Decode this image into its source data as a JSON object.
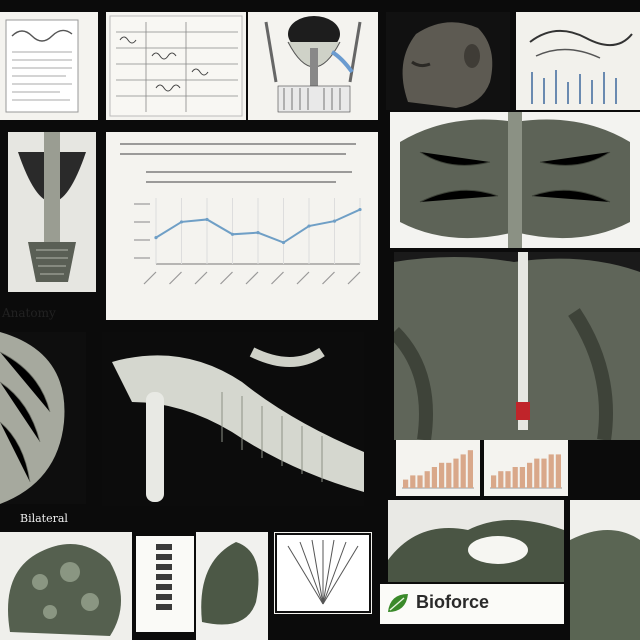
{
  "labels": {
    "left_caption": "Anatomy",
    "bottom_caption": "Bilateral",
    "brand_caption": "Bioforce"
  },
  "colors": {
    "chart_line": "#6f9fc6",
    "brand_green": "#3a8a2a",
    "tissue_dark": "#4e5a48",
    "tissue_light": "#c9ccc2",
    "spine_red": "#c0242a"
  },
  "chart_data": [
    {
      "type": "line",
      "x": [
        1,
        2,
        3,
        4,
        5,
        6,
        7,
        8,
        9
      ],
      "series": [
        {
          "values": [
            3.2,
            5.1,
            5.4,
            3.6,
            3.8,
            2.6,
            4.6,
            5.2,
            6.6
          ]
        }
      ],
      "ylim": [
        0,
        8
      ],
      "grid": true
    },
    {
      "type": "bar",
      "series": [
        {
          "values": [
            2,
            3,
            3,
            4,
            5,
            6,
            6,
            7,
            8,
            9
          ]
        }
      ],
      "ylim": [
        0,
        10
      ]
    },
    {
      "type": "bar",
      "series": [
        {
          "values": [
            3,
            4,
            4,
            5,
            5,
            6,
            7,
            7,
            8,
            8
          ]
        }
      ],
      "ylim": [
        0,
        10
      ]
    }
  ],
  "icons": {
    "brand_mark": "leaf-icon"
  }
}
